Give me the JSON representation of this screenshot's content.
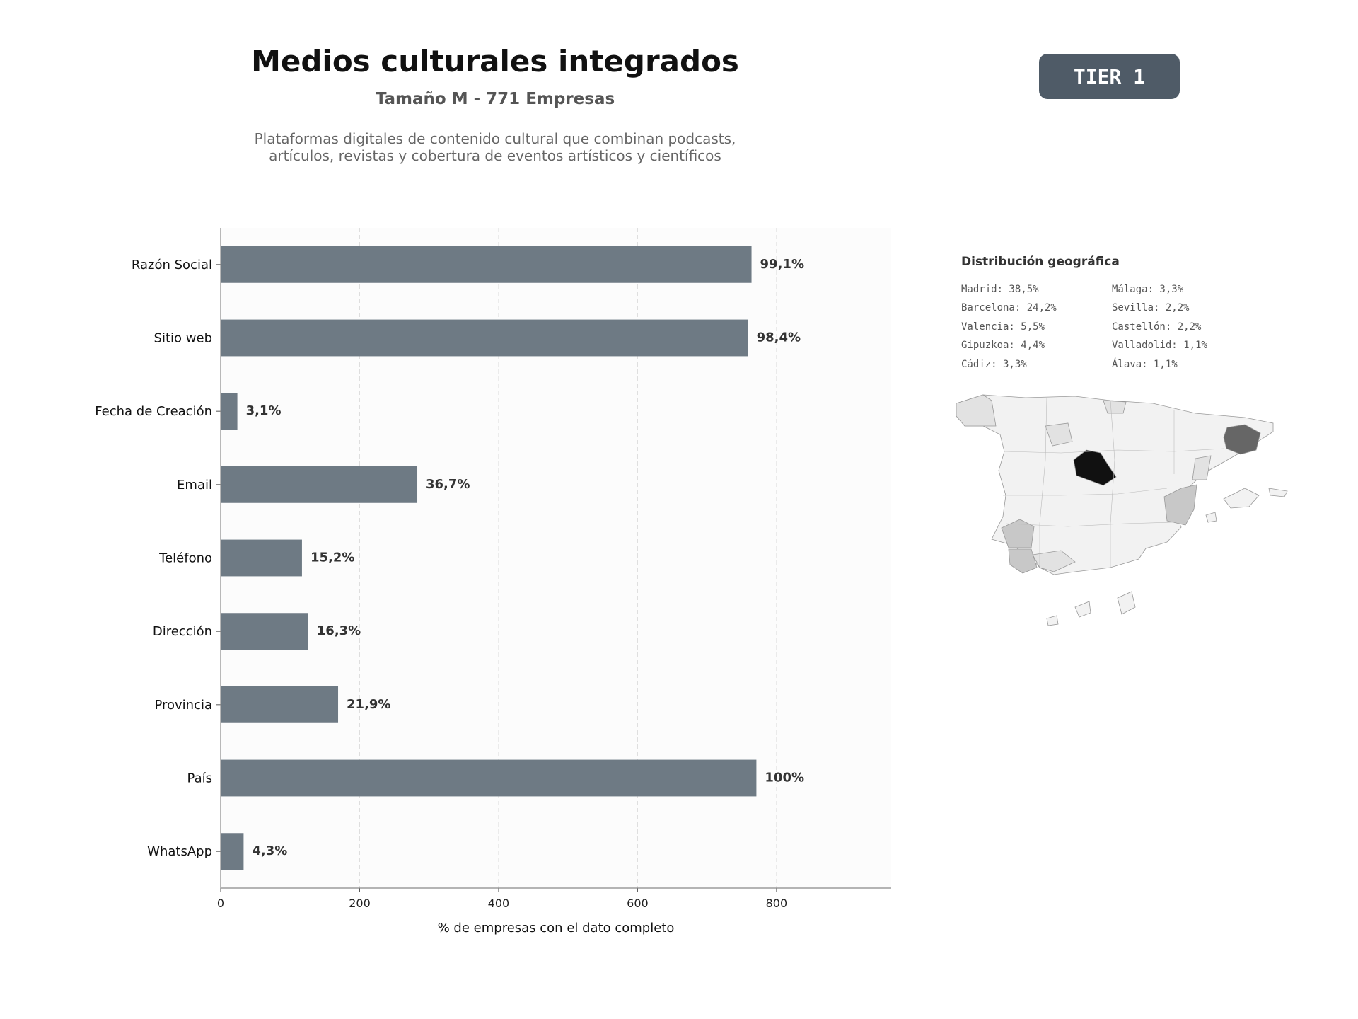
{
  "header": {
    "title": "Medios culturales integrados",
    "subtitle": "Tamaño M - 771 Empresas",
    "description_line1": "Plataformas digitales de contenido cultural que combinan podcasts,",
    "description_line2": "artículos, revistas y cobertura de eventos artísticos y científicos",
    "tier_badge": "TIER 1"
  },
  "chart_data": {
    "type": "bar",
    "orientation": "horizontal",
    "categories": [
      "Razón Social",
      "Sitio web",
      "Fecha de Creación",
      "Email",
      "Teléfono",
      "Dirección",
      "Provincia",
      "País",
      "WhatsApp"
    ],
    "values": [
      764,
      759,
      24,
      283,
      117,
      126,
      169,
      771,
      33
    ],
    "value_labels": [
      "99,1%",
      "98,4%",
      "3,1%",
      "36,7%",
      "15,2%",
      "16,3%",
      "21,9%",
      "100%",
      "4,3%"
    ],
    "xlabel": "% de empresas con el dato completo",
    "xticks": [
      0,
      200,
      400,
      600,
      800
    ],
    "xlim": [
      0,
      965
    ],
    "grid": "vertical dashed",
    "bar_color": "#6e7a84"
  },
  "geo": {
    "title": "Distribución geográfica",
    "left_column": [
      "Madrid: 38,5%",
      "Barcelona: 24,2%",
      "Valencia: 5,5%",
      "Gipuzkoa: 4,4%",
      "Cádiz: 3,3%"
    ],
    "right_column": [
      "Málaga: 3,3%",
      "Sevilla: 2,2%",
      "Castellón: 2,2%",
      "Valladolid: 1,1%",
      "Álava: 1,1%"
    ]
  },
  "colors": {
    "badge_bg": "#4f5b67",
    "bar": "#6e7a84",
    "map_top": "#111111",
    "map_second": "#666666",
    "map_mid": "#c8c8c8",
    "map_low": "#e2e2e2",
    "map_base": "#f2f2f2"
  }
}
